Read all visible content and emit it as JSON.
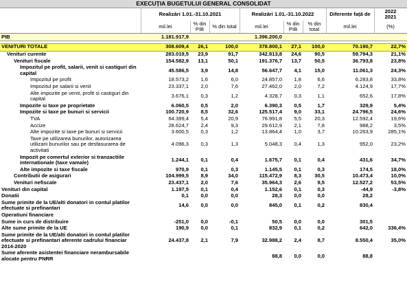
{
  "title": "EXECUȚIA BUGETULUI GENERAL CONSOLIDAT",
  "header": {
    "groups": [
      "Realizări 1.01.-31.10.2021",
      "Realizări 1.01.-31.10.2022",
      "Diferente față de"
    ],
    "ratio": [
      "2022",
      "2021"
    ],
    "units": [
      "mil.lei",
      "% din PIB",
      "% din total",
      "mil.lei",
      "% din PIB",
      "% din total",
      "mil.lei",
      "(%)"
    ]
  },
  "table": {
    "rows": [
      [
        "PIB",
        "1.181.917,9",
        null,
        null,
        "1.396.200,0",
        null,
        null,
        null,
        null
      ],
      [
        "VENITURI TOTALE",
        "308.609,4",
        "26,1",
        "100,0",
        "378.800,1",
        "27,1",
        "100,0",
        "70.190,7",
        "22,7%"
      ],
      [
        "Venituri curente",
        "283.019,5",
        "23,9",
        "91,7",
        "342.813,8",
        "24,6",
        "90,5",
        "59.794,3",
        "21,1%"
      ],
      [
        "Venituri fiscale",
        "154.582,9",
        "13,1",
        "50,1",
        "191.376,7",
        "13,7",
        "50,5",
        "36.793,8",
        "23,8%"
      ],
      [
        "Impozitul pe profit, salarii, venit si castiguri din capital",
        "45.586,5",
        "3,9",
        "14,8",
        "56.647,7",
        "4,1",
        "15,0",
        "11.061,3",
        "24,3%"
      ],
      [
        "Impozitul pe profit",
        "18.573,2",
        "1,6",
        "6,0",
        "24.857,0",
        "1,8",
        "6,6",
        "6.283,8",
        "33,8%"
      ],
      [
        "Impozitul pe salarii si venit",
        "23.337,1",
        "2,0",
        "7,6",
        "27.462,0",
        "2,0",
        "7,2",
        "4.124,9",
        "17,7%"
      ],
      [
        "Alte impozite pe venit, profit si castiguri din capital",
        "3.676,1",
        "0,3",
        "1,2",
        "4.328,7",
        "0,3",
        "1,1",
        "652,6",
        "17,8%"
      ],
      [
        "Impozite si taxe pe proprietate",
        "6.060,5",
        "0,5",
        "2,0",
        "6.390,3",
        "0,5",
        "1,7",
        "329,9",
        "5,4%"
      ],
      [
        "Impozite si taxe pe bunuri si servicii",
        "100.720,9",
        "8,5",
        "32,6",
        "125.517,4",
        "9,0",
        "33,1",
        "24.796,5",
        "24,6%"
      ],
      [
        "TVA",
        "64.399,4",
        "5,4",
        "20,9",
        "76.991,8",
        "5,5",
        "20,3",
        "12.592,4",
        "19,6%"
      ],
      [
        "Accize",
        "28.624,7",
        "2,4",
        "9,3",
        "29.612,9",
        "2,1",
        "7,8",
        "988,2",
        "3,5%"
      ],
      [
        "Alte impozite si taxe pe bunuri si servicii",
        "3.600,5",
        "0,3",
        "1,2",
        "13.864,4",
        "1,0",
        "3,7",
        "10.263,9",
        "285,1%"
      ],
      [
        "Taxe pe utilizarea bunurilor, autorizarea utilizarii bunurilor sau pe desfasurarea de activitati",
        "4.096,3",
        "0,3",
        "1,3",
        "5.048,3",
        "0,4",
        "1,3",
        "952,0",
        "23,2%"
      ],
      [
        "Impozit pe comertul exterior si tranzactiile internationale (taxe vamale)",
        "1.244,1",
        "0,1",
        "0,4",
        "1.675,7",
        "0,1",
        "0,4",
        "431,6",
        "34,7%"
      ],
      [
        "Alte impozite si taxe fiscale",
        "970,9",
        "0,1",
        "0,3",
        "1.145,5",
        "0,1",
        "0,3",
        "174,5",
        "18,0%"
      ],
      [
        "Contributii de asigurari",
        "104.999,5",
        "8,9",
        "34,0",
        "115.472,9",
        "8,3",
        "30,5",
        "10.473,4",
        "10,0%"
      ],
      [
        "Venituri nefiscale",
        "23.437,1",
        "2,0",
        "7,6",
        "35.964,3",
        "2,6",
        "9,5",
        "12.527,2",
        "53,5%"
      ],
      [
        "Venituri din capital",
        "1.197,5",
        "0,1",
        "0,4",
        "1.152,6",
        "0,1",
        "0,3",
        "-44,9",
        "-3,8%"
      ],
      [
        "Donatii",
        "0,1",
        "0,0",
        "0,0",
        "28,3",
        "0,0",
        "0,0",
        "28,2",
        null
      ],
      [
        "Sume primite de la UE/alti donatori in contul platilor efectuate si prefinantari",
        "14,6",
        "0,0",
        "0,0",
        "845,0",
        "0,1",
        "0,2",
        "830,4",
        null
      ],
      [
        "Operatiuni financiare",
        null,
        null,
        null,
        null,
        null,
        null,
        null,
        null
      ],
      [
        "Sume in curs de distribuire",
        "-251,0",
        "0,0",
        "-0,1",
        "50,5",
        "0,0",
        "0,0",
        "301,5",
        null
      ],
      [
        "Alte sume primite de la UE",
        "190,9",
        "0,0",
        "0,1",
        "832,9",
        "0,1",
        "0,2",
        "642,0",
        "336,4%"
      ],
      [
        "Sume primite de la UE/alti donatori in contul platilor efectuate si prefinantari aferente cadrului financiar 2014-2020",
        "24.437,8",
        "2,1",
        "7,9",
        "32.988,2",
        "2,4",
        "8,7",
        "8.550,4",
        "35,0%"
      ],
      [
        "Sume aferente asistentei financiare nerambursabile alocate pentru PNRR",
        null,
        null,
        null,
        "88,8",
        "0,0",
        "0,0",
        "88,8",
        null
      ]
    ]
  }
}
